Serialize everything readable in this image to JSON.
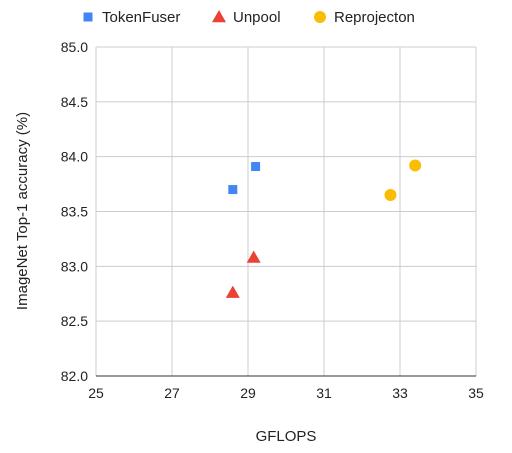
{
  "chart_data": {
    "type": "scatter",
    "title": "",
    "xlabel": "GFLOPS",
    "ylabel": "ImageNet Top-1 accuracy (%)",
    "xlim": [
      25,
      35
    ],
    "ylim": [
      82.0,
      85.0
    ],
    "xticks": [
      "25",
      "27",
      "29",
      "31",
      "33",
      "35"
    ],
    "yticks": [
      "82.0",
      "82.5",
      "83.0",
      "83.5",
      "84.0",
      "84.5",
      "85.0"
    ],
    "grid": true,
    "legend_position": "top",
    "series": [
      {
        "name": "TokenFuser",
        "marker": "square",
        "color": "#4285f4",
        "points": [
          {
            "x": 28.6,
            "y": 83.7
          },
          {
            "x": 29.2,
            "y": 83.91
          }
        ]
      },
      {
        "name": "Unpool",
        "marker": "triangle",
        "color": "#ea4335",
        "points": [
          {
            "x": 28.6,
            "y": 82.76
          },
          {
            "x": 29.15,
            "y": 83.08
          }
        ]
      },
      {
        "name": "Reprojecton",
        "marker": "circle",
        "color": "#fbbc04",
        "points": [
          {
            "x": 32.75,
            "y": 83.65
          },
          {
            "x": 33.4,
            "y": 83.92
          }
        ]
      }
    ]
  }
}
